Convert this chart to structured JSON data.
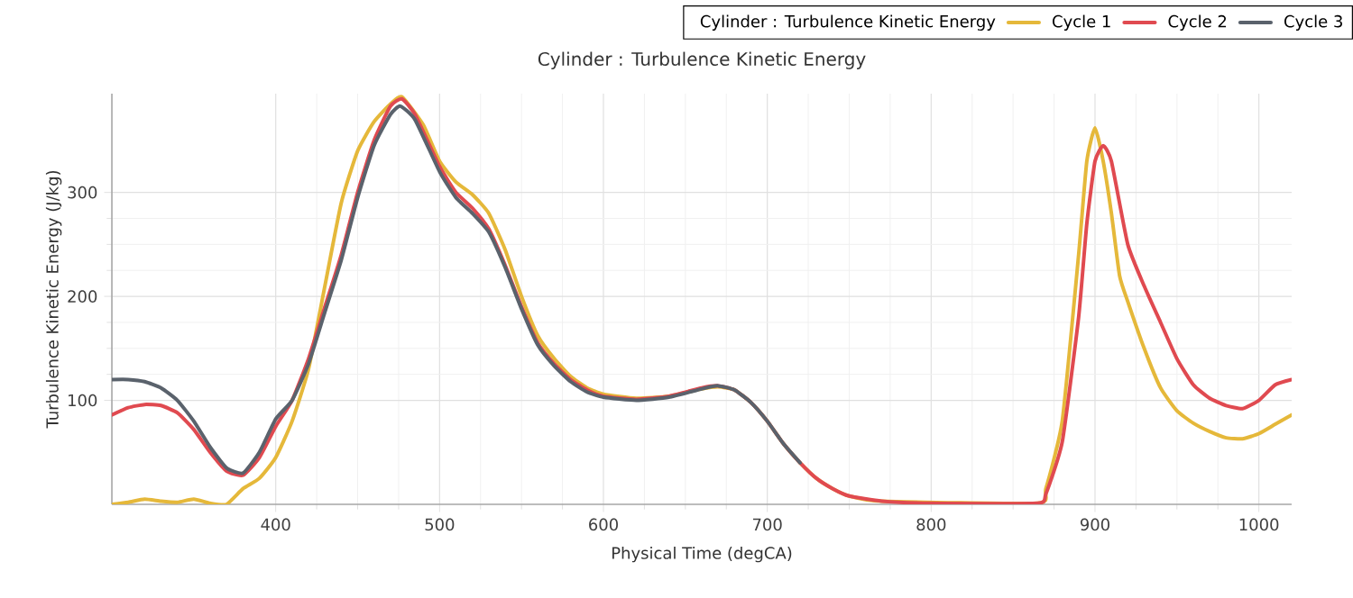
{
  "chart_data": {
    "type": "line",
    "title": "Cylinder : Turbulence Kinetic Energy",
    "xlabel": "Physical Time (degCA)",
    "ylabel": "Turbulence Kinetic Energy (J/kg)",
    "legend_title": "Cylinder : Turbulence Kinetic Energy",
    "xlim": [
      300,
      1020
    ],
    "ylim": [
      0,
      395
    ],
    "xticks": [
      400,
      500,
      600,
      700,
      800,
      900,
      1000
    ],
    "yticks": [
      100,
      200,
      300
    ],
    "grid": true,
    "legend": "top right",
    "marker": "none",
    "line_style": "solid",
    "series": [
      {
        "name": "Cycle 1",
        "color": "#e5b83a",
        "x": [
          300,
          310,
          320,
          330,
          340,
          350,
          360,
          370,
          380,
          390,
          400,
          410,
          420,
          430,
          440,
          450,
          460,
          470,
          477,
          490,
          500,
          510,
          520,
          530,
          540,
          550,
          560,
          570,
          580,
          590,
          600,
          620,
          640,
          660,
          670,
          680,
          690,
          700,
          710,
          720,
          730,
          740,
          750,
          770,
          800,
          865,
          870,
          880,
          890,
          895,
          900,
          905,
          910,
          915,
          920,
          930,
          940,
          950,
          960,
          970,
          980,
          990,
          1000,
          1010,
          1020
        ],
        "values": [
          0,
          2,
          5,
          3,
          2,
          5,
          1,
          0,
          15,
          25,
          45,
          80,
          130,
          210,
          290,
          340,
          368,
          385,
          392,
          365,
          330,
          310,
          298,
          280,
          245,
          200,
          162,
          140,
          123,
          112,
          106,
          102,
          104,
          111,
          113,
          110,
          98,
          80,
          58,
          40,
          25,
          15,
          8,
          3,
          null,
          1,
          15,
          80,
          240,
          330,
          362,
          330,
          280,
          220,
          195,
          150,
          112,
          90,
          78,
          70,
          64,
          63,
          68,
          77,
          86
        ]
      },
      {
        "name": "Cycle 2",
        "color": "#e04a50",
        "x": [
          300,
          310,
          320,
          330,
          340,
          350,
          360,
          370,
          380,
          390,
          400,
          410,
          420,
          430,
          440,
          450,
          460,
          470,
          477,
          485,
          500,
          510,
          520,
          530,
          540,
          550,
          560,
          570,
          580,
          590,
          600,
          620,
          640,
          660,
          670,
          680,
          690,
          700,
          710,
          720,
          730,
          740,
          750,
          770,
          800,
          865,
          870,
          880,
          890,
          895,
          900,
          905,
          910,
          920,
          930,
          940,
          950,
          960,
          970,
          980,
          990,
          1000,
          1010,
          1020
        ],
        "values": [
          86,
          93,
          96,
          95,
          88,
          72,
          50,
          32,
          28,
          45,
          75,
          100,
          140,
          190,
          240,
          300,
          350,
          383,
          390,
          375,
          325,
          300,
          285,
          265,
          230,
          190,
          155,
          135,
          120,
          110,
          104,
          101,
          104,
          112,
          114,
          110,
          98,
          80,
          58,
          40,
          25,
          15,
          8,
          3,
          1,
          1,
          10,
          60,
          180,
          270,
          330,
          345,
          330,
          250,
          210,
          175,
          140,
          115,
          102,
          95,
          92,
          100,
          115,
          120
        ]
      },
      {
        "name": "Cycle 3",
        "color": "#5a626c",
        "x": [
          300,
          310,
          320,
          330,
          340,
          350,
          360,
          370,
          380,
          390,
          400,
          410,
          420,
          430,
          440,
          450,
          460,
          470,
          476,
          485,
          500,
          510,
          520,
          530,
          540,
          550,
          560,
          570,
          580,
          590,
          600,
          620,
          640,
          660,
          670,
          680,
          690,
          700,
          710,
          720
        ],
        "values": [
          120,
          120,
          118,
          112,
          100,
          80,
          55,
          35,
          30,
          50,
          82,
          100,
          135,
          185,
          235,
          295,
          345,
          375,
          383,
          370,
          320,
          295,
          280,
          262,
          228,
          188,
          153,
          133,
          118,
          108,
          103,
          100,
          103,
          111,
          114,
          110,
          98,
          80,
          58,
          40
        ]
      }
    ]
  }
}
